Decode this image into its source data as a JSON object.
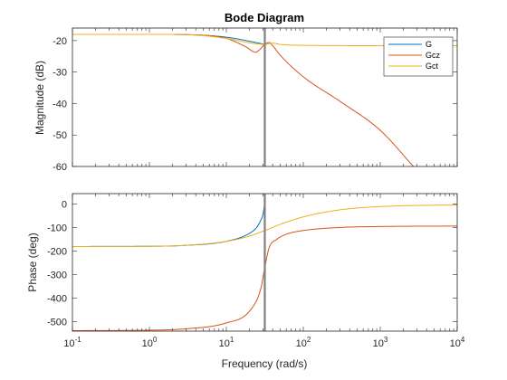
{
  "chart_data": {
    "type": "line",
    "title": "Bode Diagram",
    "xlabel": "Frequency (rad/s)",
    "x_scale": "log",
    "xlim": [
      0.1,
      10000
    ],
    "x_tick_labels": [
      {
        "value": 0.1,
        "base": "10",
        "exp": "-1"
      },
      {
        "value": 1,
        "base": "10",
        "exp": "0"
      },
      {
        "value": 10,
        "base": "10",
        "exp": "1"
      },
      {
        "value": 100,
        "base": "10",
        "exp": "2"
      },
      {
        "value": 1000,
        "base": "10",
        "exp": "3"
      },
      {
        "value": 10000,
        "base": "10",
        "exp": "4"
      }
    ],
    "vertical_marker": {
      "x": 31.6,
      "color": "#808080"
    },
    "legend": {
      "position": "top-right",
      "entries": [
        "G",
        "Gcz",
        "Gct"
      ]
    },
    "colors": {
      "G": "#0072BD",
      "Gcz": "#D95319",
      "Gct": "#EDB120"
    },
    "panels": [
      {
        "name": "magnitude",
        "ylabel": "Magnitude (dB)",
        "ylim": [
          -60,
          -16
        ],
        "yticks": [
          -20,
          -30,
          -40,
          -50,
          -60
        ],
        "series": [
          {
            "name": "G",
            "x": [
              0.1,
              1,
              3,
              10,
              20,
              31.6
            ],
            "y": [
              -18,
              -18,
              -18.1,
              -18.9,
              -20.2,
              -21.2
            ]
          },
          {
            "name": "Gcz",
            "x": [
              0.1,
              1,
              3,
              10,
              18,
              24,
              27,
              31.6,
              36,
              40,
              50,
              100,
              300,
              1000,
              2700
            ],
            "y": [
              -18,
              -18,
              -18.1,
              -19.3,
              -22.0,
              -23.7,
              -22.9,
              -21.2,
              -20.6,
              -21.6,
              -24.6,
              -31.5,
              -39.3,
              -48.5,
              -60
            ]
          },
          {
            "name": "Gct",
            "x": [
              0.1,
              1,
              3,
              10,
              20,
              31.6,
              40,
              50,
              100,
              1000,
              10000
            ],
            "y": [
              -18,
              -18,
              -18.1,
              -19.3,
              -20.7,
              -21.2,
              -20.8,
              -21.2,
              -21.5,
              -21.6,
              -21.6
            ]
          }
        ]
      },
      {
        "name": "phase",
        "ylabel": "Phase (deg)",
        "ylim": [
          -540,
          45
        ],
        "yticks": [
          0,
          -100,
          -200,
          -300,
          -400,
          -500
        ],
        "series": [
          {
            "name": "G",
            "x": [
              0.1,
              1,
              3,
              10,
              20,
              25,
              28,
              30,
              31.4
            ],
            "y": [
              -180,
              -179,
              -175,
              -158,
              -124,
              -97,
              -68,
              -42,
              0
            ]
          },
          {
            "name": "Gcz",
            "x": [
              0.1,
              1,
              3,
              10,
              20,
              28,
              31.6,
              36,
              45,
              60,
              100,
              300,
              1000,
              10000
            ],
            "y": [
              -538,
              -536,
              -530,
              -505,
              -455,
              -360,
              -270,
              -185,
              -150,
              -128,
              -112,
              -99,
              -95,
              -93
            ]
          },
          {
            "name": "Gct",
            "x": [
              0.1,
              1,
              3,
              10,
              20,
              31.6,
              50,
              100,
              300,
              1000,
              10000
            ],
            "y": [
              -180,
              -179,
              -175,
              -158,
              -136,
              -112,
              -86,
              -54,
              -24,
              -10,
              -3
            ]
          }
        ]
      }
    ]
  }
}
